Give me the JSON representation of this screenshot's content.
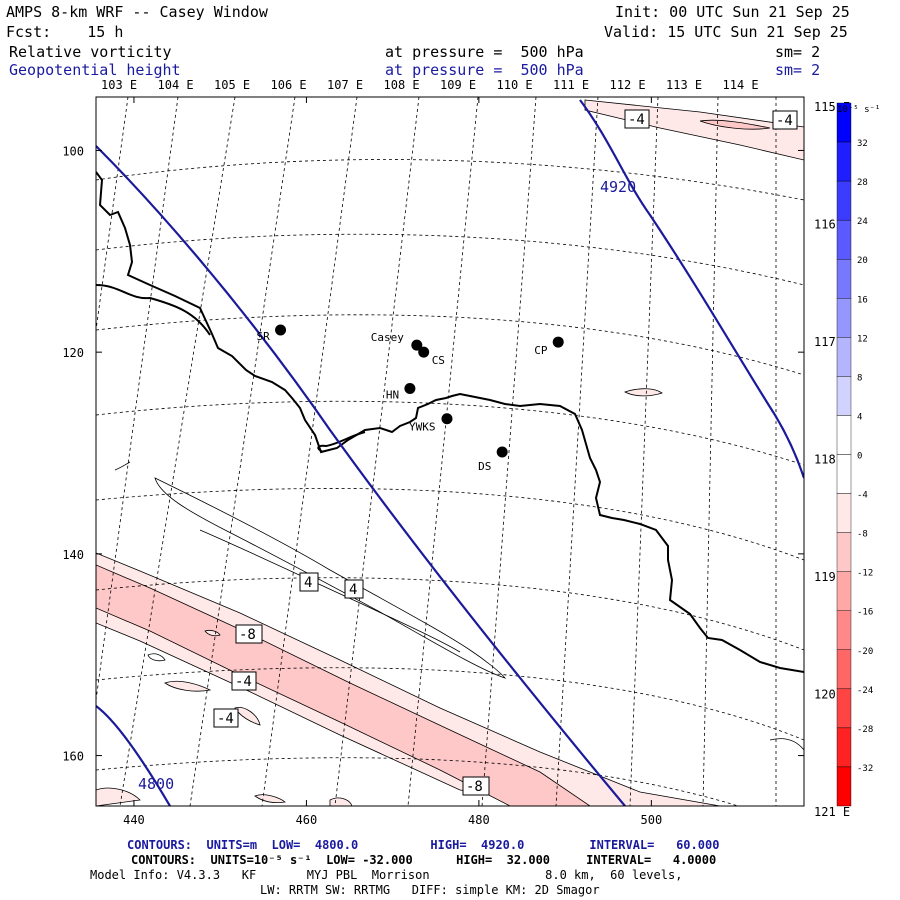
{
  "header": {
    "model_title": "AMPS 8-km WRF -- Casey Window",
    "init": "Init: 00 UTC Sun 21 Sep 25",
    "fcst": "Fcst:    15 h",
    "valid": "Valid: 15 UTC Sun 21 Sep 25",
    "field1_name": "Relative vorticity",
    "field1_level": "at pressure =  500 hPa",
    "field1_sm": "sm= 2",
    "field2_name": "Geopotential height",
    "field2_level": "at pressure =  500 hPa",
    "field2_sm": "sm= 2"
  },
  "longitude_labels_top": [
    "103 E",
    "104 E",
    "105 E",
    "106 E",
    "107 E",
    "108 E",
    "109 E",
    "110 E",
    "111 E",
    "112 E",
    "113 E",
    "114 E"
  ],
  "longitude_labels_right": [
    "115 E",
    "116 E",
    "117 E",
    "118 E",
    "119 E",
    "120 E",
    "121 E"
  ],
  "x_axis_ticks": [
    "440",
    "460",
    "480",
    "500"
  ],
  "y_axis_ticks": [
    "100",
    "120",
    "140",
    "160"
  ],
  "stations": [
    {
      "name": "SR",
      "x": 457.0,
      "y": 117.8
    },
    {
      "name": "Casey",
      "x": 472.8,
      "y": 119.3
    },
    {
      "name": "CS",
      "x": 473.6,
      "y": 120.0
    },
    {
      "name": "HN",
      "x": 472.0,
      "y": 123.6
    },
    {
      "name": "YWKS",
      "x": 476.3,
      "y": 126.6
    },
    {
      "name": "DS",
      "x": 482.7,
      "y": 129.9
    },
    {
      "name": "CP",
      "x": 489.2,
      "y": 119.0
    }
  ],
  "contour_labels": {
    "height": [
      "4920",
      "4800"
    ],
    "vorticity": [
      "-4",
      "-4",
      "4",
      "4",
      "-8",
      "-4",
      "-4",
      "-8"
    ]
  },
  "colorbar": {
    "units": "10⁻⁵ s⁻¹",
    "levels": [
      "32",
      "28",
      "24",
      "20",
      "16",
      "12",
      "8",
      "4",
      "0",
      "-4",
      "-8",
      "-12",
      "-16",
      "-20",
      "-24",
      "-28",
      "-32"
    ],
    "colors": [
      "#0000ff",
      "#1e1eff",
      "#3c3cff",
      "#5a5aff",
      "#7878ff",
      "#9696ff",
      "#b4b4ff",
      "#d2d2ff",
      "#ffffff",
      "#ffffff",
      "#ffe8e8",
      "#ffc8c8",
      "#ffa8a8",
      "#ff8888",
      "#ff6666",
      "#ff4444",
      "#ff2222",
      "#ff0000"
    ]
  },
  "footer": {
    "contours_height": "CONTOURS:  UNITS=m  LOW=  4800.0          HIGH=  4920.0         INTERVAL=   60.000",
    "contours_vort": "CONTOURS:  UNITS=10⁻⁵ s⁻¹  LOW= -32.000      HIGH=  32.000     INTERVAL=   4.0000",
    "model_info_1": "Model Info: V4.3.3   KF       MYJ PBL  Morrison                8.0 km,  60 levels,",
    "model_info_2": "LW: RRTM SW: RRTMG   DIFF: simple KM: 2D Smagor"
  }
}
